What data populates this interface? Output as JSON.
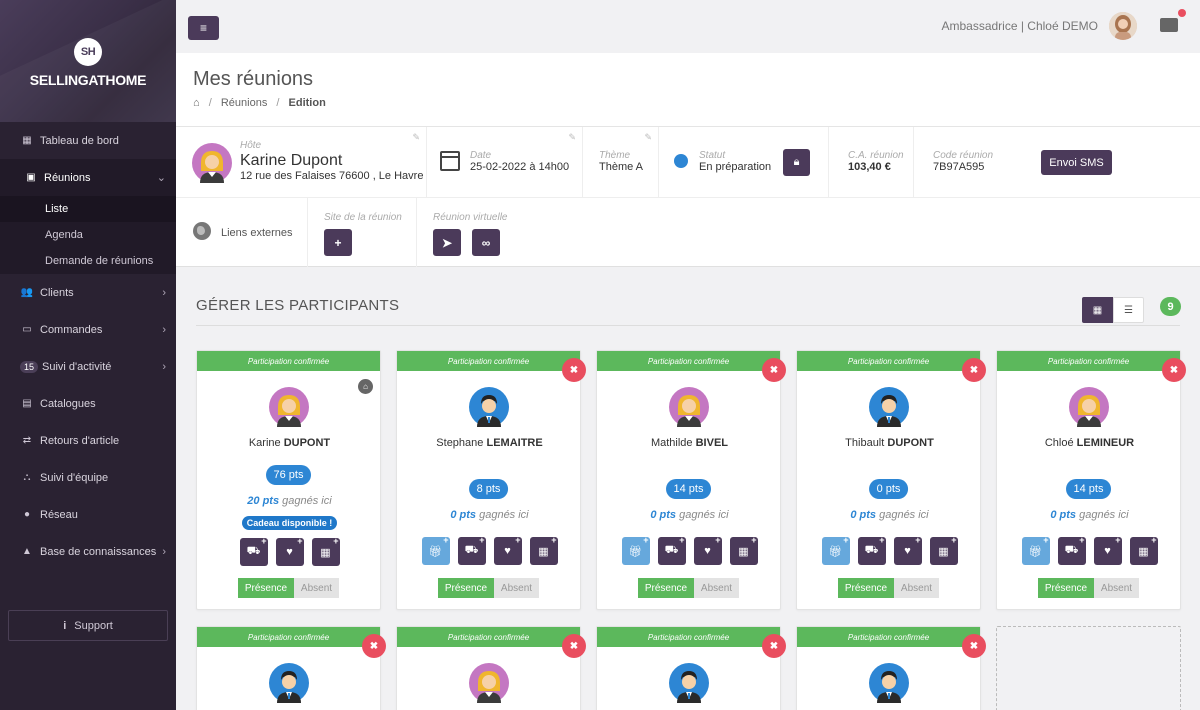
{
  "sidebar": {
    "logo_mark": "SH",
    "logo_text": "SELLINGATHOME",
    "items": [
      {
        "label": "Tableau de bord",
        "icon": "dashboard-icon"
      },
      {
        "label": "Réunions",
        "icon": "calendar-icon"
      },
      {
        "label": "Clients",
        "icon": "users-icon"
      },
      {
        "label": "Commandes",
        "icon": "credit-card-icon"
      },
      {
        "label": "Suivi d'activité",
        "icon": "activity-icon",
        "badge": "15"
      },
      {
        "label": "Catalogues",
        "icon": "book-icon"
      },
      {
        "label": "Retours d'article",
        "icon": "exchange-icon"
      },
      {
        "label": "Suivi d'équipe",
        "icon": "sitemap-icon"
      },
      {
        "label": "Réseau",
        "icon": "globe-icon"
      },
      {
        "label": "Base de connaissances",
        "icon": "graduation-cap-icon"
      }
    ],
    "sub_items": [
      "Liste",
      "Agenda",
      "Demande de réunions"
    ],
    "support": "Support"
  },
  "topbar": {
    "user": "Ambassadrice | Chloé DEMO"
  },
  "page": {
    "title": "Mes réunions",
    "breadcrumb": [
      "Réunions",
      "Edition"
    ]
  },
  "info": {
    "host_label": "Hôte",
    "host_name": "Karine Dupont",
    "host_address": "12 rue des Falaises 76600 , Le Havre",
    "date_label": "Date",
    "date_value": "25-02-2022 à 14h00",
    "theme_label": "Thème",
    "theme_value": "Thème A",
    "status_label": "Statut",
    "status_value": "En préparation",
    "ca_label": "C.A. réunion",
    "ca_value": "103,40 €",
    "code_label": "Code réunion",
    "code_value": "7B97A595",
    "sms_button": "Envoi SMS",
    "links_label": "Liens externes",
    "site_label": "Site de la réunion",
    "virtual_label": "Réunion virtuelle"
  },
  "participants": {
    "title": "GÉRER LES PARTICIPANTS",
    "count": "9",
    "confirmed_label": "Participation confirmée",
    "earned_suffix": "gagnés ici",
    "gift_label": "Cadeau disponible !",
    "presence_label": "Présence",
    "absent_label": "Absent",
    "cards": [
      {
        "first": "Karine",
        "last": "DUPONT",
        "pts": "76 pts",
        "earned": "20 pts",
        "gender": "f",
        "host": true
      },
      {
        "first": "Stephane",
        "last": "LEMAITRE",
        "pts": "8 pts",
        "earned": "0 pts",
        "gender": "m"
      },
      {
        "first": "Mathilde",
        "last": "BIVEL",
        "pts": "14 pts",
        "earned": "0 pts",
        "gender": "f"
      },
      {
        "first": "Thibault",
        "last": "DUPONT",
        "pts": "0 pts",
        "earned": "0 pts",
        "gender": "m"
      },
      {
        "first": "Chloé",
        "last": "LEMINEUR",
        "pts": "14 pts",
        "earned": "0 pts",
        "gender": "f"
      }
    ],
    "row2": [
      {
        "gender": "m"
      },
      {
        "gender": "f"
      },
      {
        "gender": "m"
      },
      {
        "gender": "m"
      }
    ]
  }
}
